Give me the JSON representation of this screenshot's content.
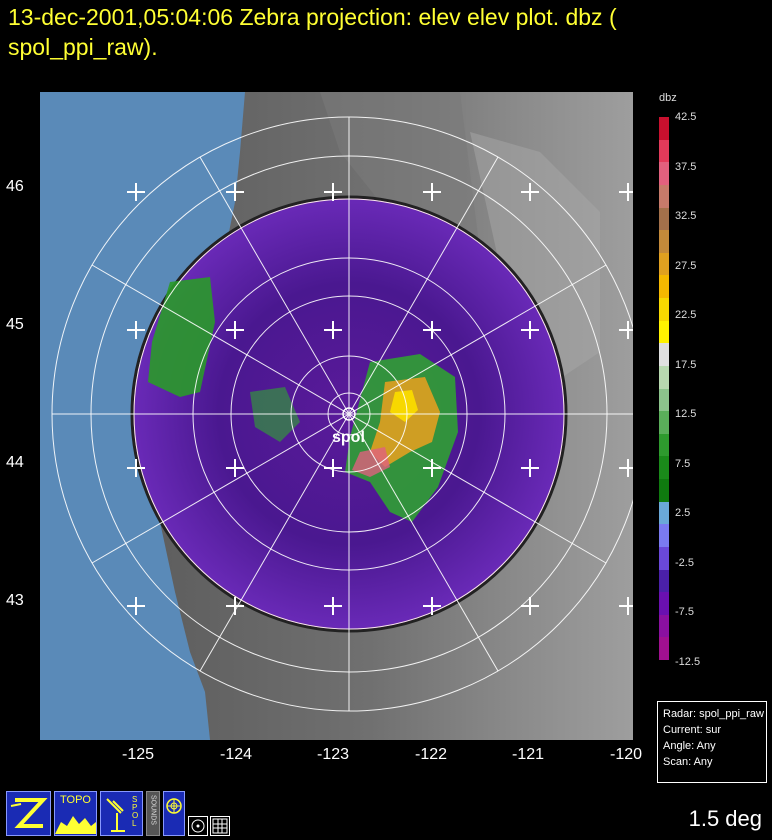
{
  "header": {
    "timestamp": "13-dec-2001,05:04:06",
    "title_rest": "Zebra projection: elev elev  plot.  dbz (",
    "title_line2": "spol_ppi_raw)."
  },
  "map": {
    "site_label": "spol",
    "lat_labels": [
      "46",
      "45",
      "44",
      "43"
    ],
    "lon_labels": [
      "-125",
      "-124",
      "-123",
      "-122",
      "-121",
      "-120"
    ]
  },
  "colorbar": {
    "title": "dbz",
    "labels": [
      "42.5",
      "37.5",
      "32.5",
      "27.5",
      "22.5",
      "17.5",
      "12.5",
      "7.5",
      "2.5",
      "-2.5",
      "-7.5",
      "-12.5"
    ],
    "colors": [
      "#c8102e",
      "#e33a5a",
      "#e2607e",
      "#c77a6a",
      "#a3704a",
      "#c48a3a",
      "#e0a020",
      "#f5b800",
      "#f7d800",
      "#fff200",
      "#e0e0e0",
      "#b8d8b0",
      "#8cc48c",
      "#5aae5a",
      "#2e9a2e",
      "#1a8a1a",
      "#0f7a0f",
      "#6aa8d8",
      "#7a7af0",
      "#6a48d8",
      "#4a20a8",
      "#6a10b0",
      "#8a10a0",
      "#a01090"
    ]
  },
  "info": {
    "radar": "Radar: spol_ppi_raw",
    "current": "Current: sur",
    "angle": "Angle: Any",
    "scan": "Scan: Any"
  },
  "toolbar": {
    "zebra_icon": "zebra-logo-icon",
    "topo_label": "TOPO",
    "spol_label": "SPOL",
    "sounds_label": "SOUNDS"
  },
  "status": {
    "elevation": "1.5 deg"
  }
}
